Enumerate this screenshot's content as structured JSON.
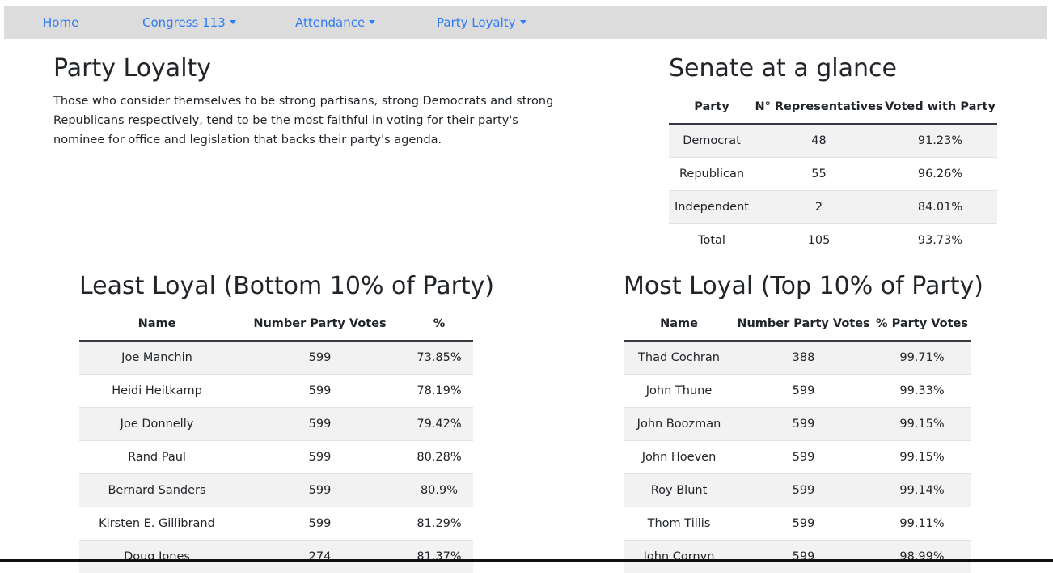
{
  "nav": {
    "home": "Home",
    "congress": "Congress 113",
    "attendance": "Attendance",
    "loyalty": "Party Loyalty"
  },
  "intro": {
    "title": "Party Loyalty",
    "text": "Those who consider themselves to be strong partisans, strong Democrats and strong Republicans respectively, tend to be the most faithful in voting for their party's nominee for office and legislation that backs their party's agenda."
  },
  "glance": {
    "title": "Senate at a glance",
    "headers": [
      "Party",
      "N° Representatives",
      "Voted with Party"
    ],
    "rows": [
      [
        "Democrat",
        "48",
        "91.23%"
      ],
      [
        "Republican",
        "55",
        "96.26%"
      ],
      [
        "Independent",
        "2",
        "84.01%"
      ],
      [
        "Total",
        "105",
        "93.73%"
      ]
    ]
  },
  "least": {
    "title": "Least Loyal (Bottom 10% of Party)",
    "headers": [
      "Name",
      "Number Party Votes",
      "%"
    ],
    "rows": [
      [
        "Joe Manchin",
        "599",
        "73.85%"
      ],
      [
        "Heidi Heitkamp",
        "599",
        "78.19%"
      ],
      [
        "Joe Donnelly",
        "599",
        "79.42%"
      ],
      [
        "Rand Paul",
        "599",
        "80.28%"
      ],
      [
        "Bernard Sanders",
        "599",
        "80.9%"
      ],
      [
        "Kirsten E. Gillibrand",
        "599",
        "81.29%"
      ],
      [
        "Doug Jones",
        "274",
        "81.37%"
      ]
    ]
  },
  "most": {
    "title": "Most Loyal (Top 10% of Party)",
    "headers": [
      "Name",
      "Number Party Votes",
      "% Party Votes"
    ],
    "rows": [
      [
        "Thad Cochran",
        "388",
        "99.71%"
      ],
      [
        "John Thune",
        "599",
        "99.33%"
      ],
      [
        "John Boozman",
        "599",
        "99.15%"
      ],
      [
        "John Hoeven",
        "599",
        "99.15%"
      ],
      [
        "Roy Blunt",
        "599",
        "99.14%"
      ],
      [
        "Thom Tillis",
        "599",
        "99.11%"
      ],
      [
        "John Cornyn",
        "599",
        "98.99%"
      ]
    ]
  }
}
